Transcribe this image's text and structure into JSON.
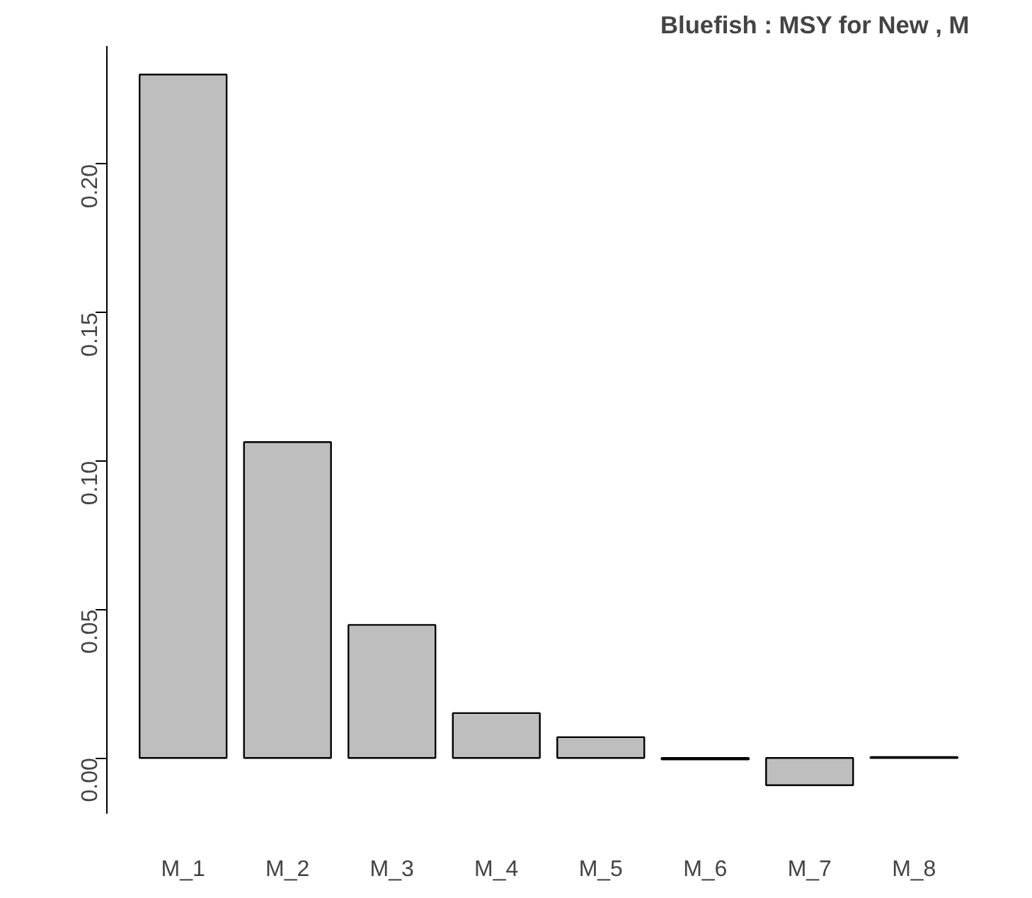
{
  "chart_data": {
    "type": "bar",
    "title": "Bluefish :  MSY  for  New , M",
    "categories": [
      "M_1",
      "M_2",
      "M_3",
      "M_4",
      "M_5",
      "M_6",
      "M_7",
      "M_8"
    ],
    "series": [
      {
        "color": "#bebebe",
        "values": [
          0.2302,
          0.1064,
          0.0448,
          0.0151,
          0.007,
          -0.0005,
          -0.0092,
          0.0003
        ]
      }
    ],
    "ylim": [
      -0.0188,
      0.2398
    ],
    "yticks": [
      {
        "value": 0,
        "label": "0.00"
      },
      0.05,
      {
        "value": 0.1,
        "label": "0.10"
      },
      0.15,
      {
        "value": 0.2,
        "label": "0.20"
      }
    ],
    "grid": false
  }
}
